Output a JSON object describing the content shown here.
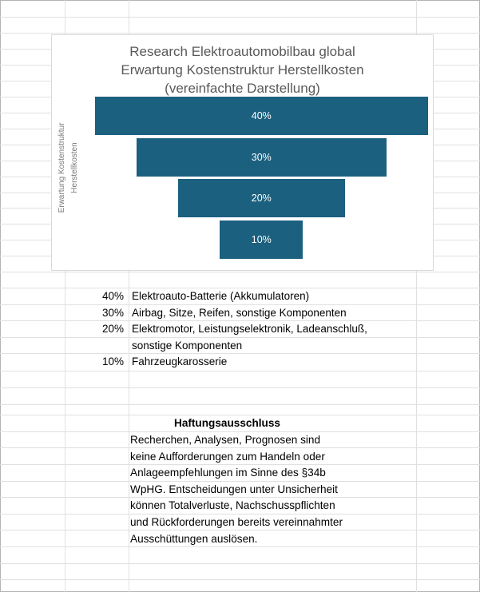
{
  "colors": {
    "bar": "#1B607F",
    "bar_label_text": "#FFFFFF",
    "title_text": "#595959",
    "axis_title_text": "#7A7A7A",
    "body_text": "#000000",
    "gridline": "#E0E0E0",
    "chart_border": "#D9D9D9",
    "page_border": "#B3B3B3"
  },
  "chart": {
    "title_lines": [
      "Research Elektroautomobilbau global",
      "Erwartung Kostenstruktur Herstellkosten",
      "(vereinfachte Darstellung)"
    ],
    "y_axis_title_line1": "Erwartung Kostenstruktur",
    "y_axis_title_line2": "Herstellkosten"
  },
  "chart_data": {
    "type": "bar",
    "subtype": "centered-funnel",
    "title": "Research Elektroautomobilbau global Erwartung Kostenstruktur Herstellkosten (vereinfachte Darstellung)",
    "ylabel": "Erwartung Kostenstruktur Herstellkosten",
    "categories": [
      "Elektroauto-Batterie (Akkumulatoren)",
      "Airbag, Sitze, Reifen, sonstige Komponenten",
      "Elektromotor, Leistungselektronik, Ladeanschluß, sonstige Komponenten",
      "Fahrzeugkarosserie"
    ],
    "values": [
      40,
      30,
      20,
      10
    ],
    "labels": [
      "40%",
      "30%",
      "20%",
      "10%"
    ],
    "xlim": [
      0,
      40
    ],
    "bar_color": "#1B607F",
    "grid": false,
    "legend": "none"
  },
  "legend_rows": [
    {
      "pct": "40%",
      "text": "Elektroauto-Batterie (Akkumulatoren)"
    },
    {
      "pct": "30%",
      "text": "Airbag, Sitze, Reifen, sonstige Komponenten"
    },
    {
      "pct": "20%",
      "text": "Elektromotor, Leistungselektronik, Ladeanschluß,"
    },
    {
      "pct": "",
      "text": "sonstige Komponenten"
    },
    {
      "pct": "10%",
      "text": "Fahrzeugkarosserie"
    }
  ],
  "disclaimer": {
    "heading": "Haftungsausschluss",
    "lines": [
      "Recherchen, Analysen, Prognosen sind",
      "keine Aufforderungen zum Handeln oder",
      "Anlageempfehlungen im Sinne des §34b",
      "WpHG. Entscheidungen unter Unsicherheit",
      "können Totalverluste, Nachschusspflichten",
      "und Rückforderungen bereits vereinnahmter",
      "Ausschüttungen auslösen."
    ]
  }
}
